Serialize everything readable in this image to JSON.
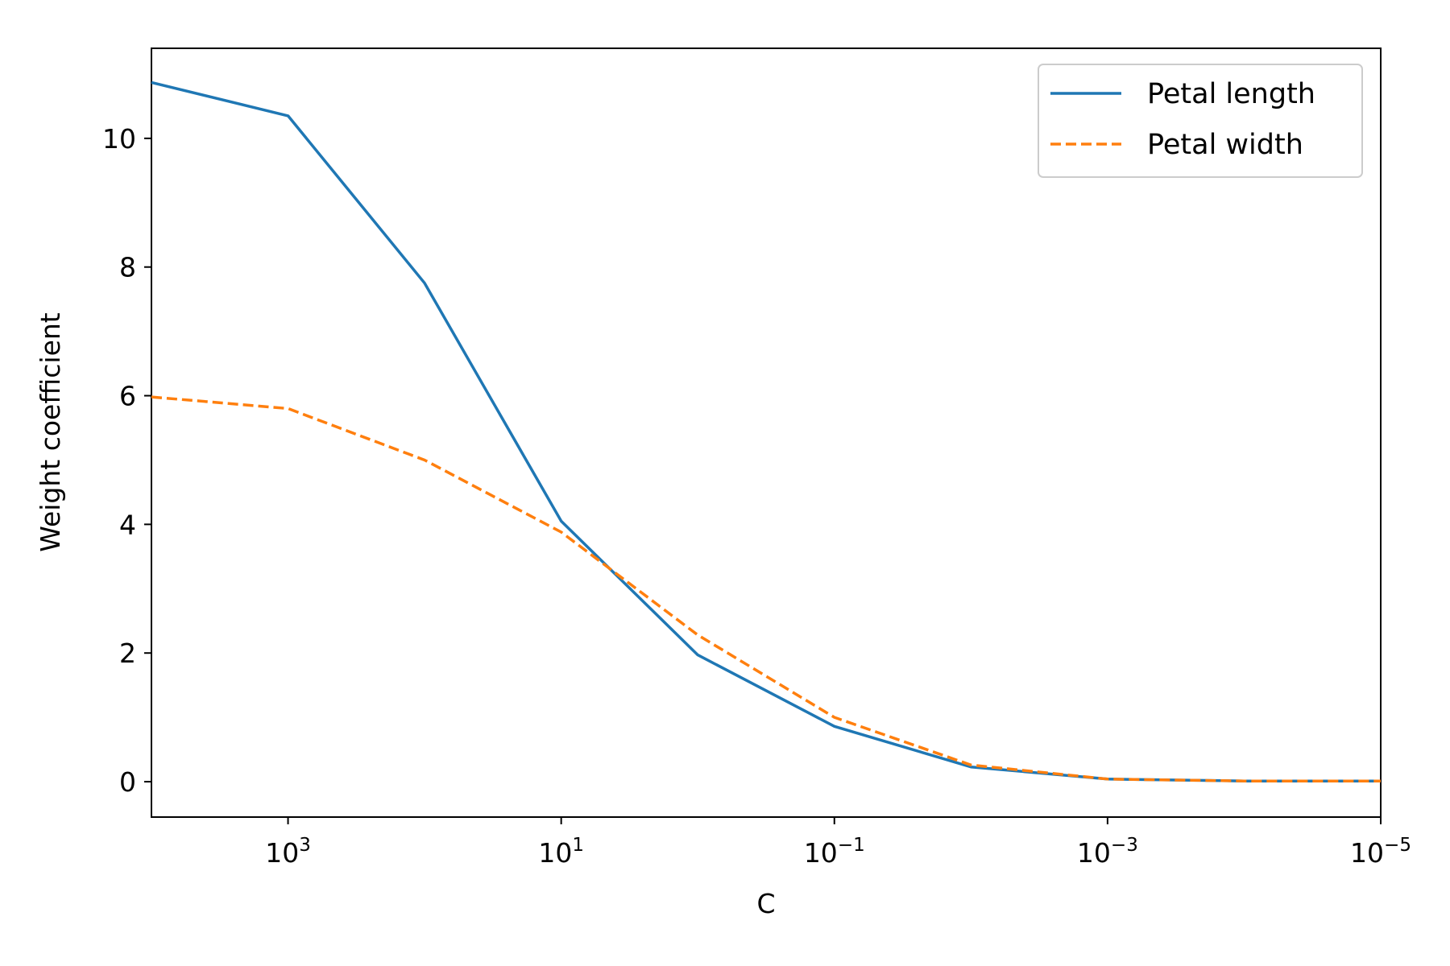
{
  "chart_data": {
    "type": "line",
    "xscale": "log",
    "x_reversed": true,
    "xlabel": "C",
    "ylabel": "Weight coefficient",
    "xlim": [
      10000,
      1e-05
    ],
    "ylim": [
      -0.55,
      11.4
    ],
    "grid": false,
    "legend_position": "top-right",
    "x": [
      10000,
      1000,
      100,
      10,
      1,
      0.1,
      0.01,
      0.001,
      0.0001,
      1e-05
    ],
    "series": [
      {
        "name": "Petal length",
        "color": "#1f77b4",
        "style": "solid",
        "values": [
          10.87,
          10.35,
          7.75,
          4.05,
          1.97,
          0.86,
          0.23,
          0.04,
          0.01,
          0.01
        ]
      },
      {
        "name": "Petal width",
        "color": "#ff7f0e",
        "style": "dashed",
        "values": [
          5.98,
          5.8,
          5.0,
          3.88,
          2.28,
          1.0,
          0.26,
          0.04,
          0.01,
          0.01
        ]
      }
    ],
    "x_ticks": [
      {
        "value": 1000,
        "base": "10",
        "exp": "3"
      },
      {
        "value": 10,
        "base": "10",
        "exp": "1"
      },
      {
        "value": 0.1,
        "base": "10",
        "exp": "−1"
      },
      {
        "value": 0.001,
        "base": "10",
        "exp": "−3"
      },
      {
        "value": 1e-05,
        "base": "10",
        "exp": "−5"
      }
    ],
    "y_ticks": [
      {
        "value": 0,
        "label": "0"
      },
      {
        "value": 2,
        "label": "2"
      },
      {
        "value": 4,
        "label": "4"
      },
      {
        "value": 6,
        "label": "6"
      },
      {
        "value": 8,
        "label": "8"
      },
      {
        "value": 10,
        "label": "10"
      }
    ]
  }
}
